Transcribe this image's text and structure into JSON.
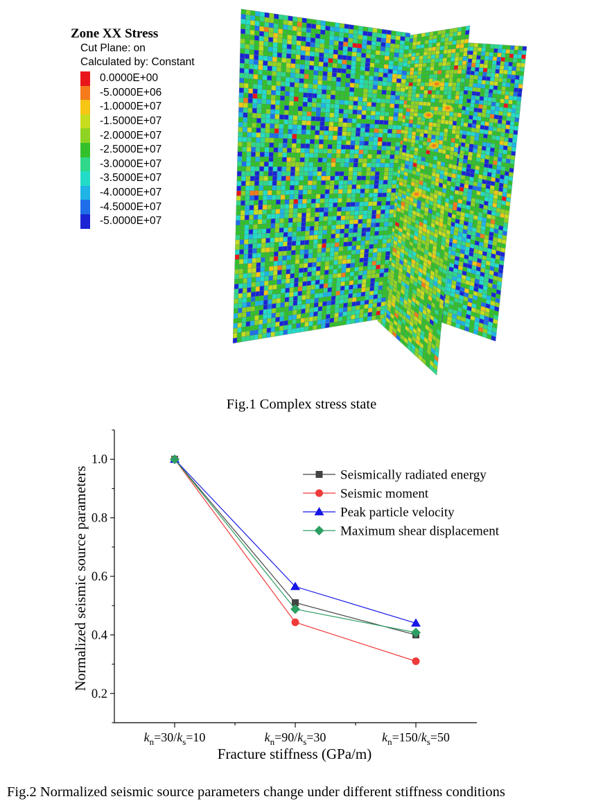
{
  "figure1": {
    "legend": {
      "title": "Zone XX Stress",
      "subtitle1": "Cut Plane: on",
      "subtitle2": "Calculated by: Constant",
      "levels": [
        {
          "label": "0.0000E+00",
          "color": "#e8161a"
        },
        {
          "label": "-5.0000E+06",
          "color": "#f47a1c"
        },
        {
          "label": "-1.0000E+07",
          "color": "#f6c515"
        },
        {
          "label": "-1.5000E+07",
          "color": "#c6dc1e"
        },
        {
          "label": "-2.0000E+07",
          "color": "#8ed322"
        },
        {
          "label": "-2.5000E+07",
          "color": "#33c02b"
        },
        {
          "label": "-3.0000E+07",
          "color": "#2fd88a"
        },
        {
          "label": "-3.5000E+07",
          "color": "#23dcc8"
        },
        {
          "label": "-4.0000E+07",
          "color": "#1fb3e6"
        },
        {
          "label": "-4.5000E+07",
          "color": "#1e6ee9"
        },
        {
          "label": "-5.0000E+07",
          "color": "#1a24d4"
        }
      ]
    },
    "caption": "Fig.1 Complex stress state"
  },
  "figure2": {
    "caption": "Fig.2 Normalized seismic source parameters change under different stiffness conditions"
  },
  "chart_data": {
    "type": "line",
    "categories": [
      "kn=30/ks=10",
      "kn=90/ks=30",
      "kn=150/ks=50"
    ],
    "category_labels": [
      {
        "k1": "k",
        "s1": "n",
        "mid": "=30/",
        "k2": "k",
        "s2": "s",
        "end": "=10"
      },
      {
        "k1": "k",
        "s1": "n",
        "mid": "=90/",
        "k2": "k",
        "s2": "s",
        "end": "=30"
      },
      {
        "k1": "k",
        "s1": "n",
        "mid": "=150/",
        "k2": "k",
        "s2": "s",
        "end": "=50"
      }
    ],
    "xlabel": "Fracture stiffness (GPa/m)",
    "ylabel": "Normalized seismic source parameters",
    "ylim": [
      0.1,
      1.1
    ],
    "yticks": [
      0.2,
      0.4,
      0.6,
      0.8,
      1.0
    ],
    "ytick_labels": [
      "0.2",
      "0.4",
      "0.6",
      "0.8",
      "1.0"
    ],
    "legend_position": "top-right",
    "series": [
      {
        "name": "Seismically radiated energy",
        "color": "#444444",
        "marker": "square",
        "values": [
          1.0,
          0.51,
          0.4
        ]
      },
      {
        "name": "Seismic moment",
        "color": "#ef3b3b",
        "marker": "circle",
        "values": [
          1.0,
          0.443,
          0.31
        ]
      },
      {
        "name": "Peak particle velocity",
        "color": "#1616e6",
        "marker": "triangle",
        "values": [
          1.0,
          0.565,
          0.44
        ]
      },
      {
        "name": "Maximum shear displacement",
        "color": "#2e9e63",
        "marker": "diamond",
        "values": [
          1.0,
          0.488,
          0.408
        ]
      }
    ]
  }
}
